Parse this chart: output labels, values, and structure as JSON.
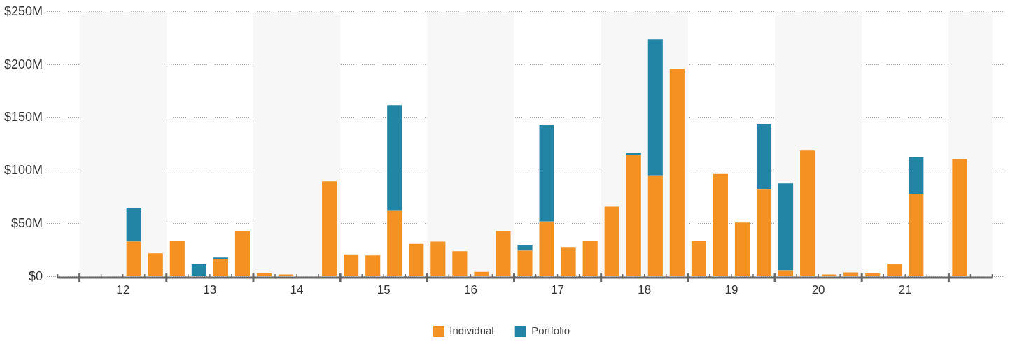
{
  "chart_data": {
    "type": "bar",
    "stacked": true,
    "x": [
      12.625,
      12.875,
      13.125,
      13.375,
      13.625,
      13.875,
      14.125,
      14.375,
      14.625,
      14.875,
      15.125,
      15.375,
      15.625,
      15.875,
      16.125,
      16.375,
      16.625,
      16.875,
      17.125,
      17.375,
      17.625,
      17.875,
      18.125,
      18.375,
      18.625,
      18.875,
      19.125,
      19.375,
      19.625,
      19.875,
      20.125,
      20.375,
      20.625,
      20.875,
      21.125,
      21.375,
      21.625,
      21.875,
      22.125
    ],
    "series": [
      {
        "name": "Individual",
        "color": "#f39122",
        "values": [
          33,
          22,
          34,
          null,
          16.5,
          43,
          3,
          2,
          null,
          90,
          21,
          20,
          62,
          31,
          33,
          24,
          4.5,
          43,
          24.5,
          52,
          28,
          34,
          66,
          115,
          95,
          196,
          33.5,
          97,
          51,
          82,
          6,
          119,
          2,
          4,
          3,
          12,
          78,
          null,
          111
        ]
      },
      {
        "name": "Portfolio",
        "color": "#2385a6",
        "values": [
          32,
          null,
          null,
          12,
          1.5,
          null,
          null,
          null,
          null,
          null,
          null,
          null,
          100,
          null,
          null,
          null,
          null,
          null,
          5.5,
          91,
          null,
          null,
          null,
          1.5,
          129,
          null,
          null,
          null,
          null,
          62,
          82,
          null,
          null,
          null,
          null,
          null,
          35,
          null,
          null
        ]
      }
    ],
    "xlim": [
      11.75,
      22.5
    ],
    "xticks": [
      {
        "value": 11.75,
        "label": null
      },
      {
        "value": 12,
        "label": null
      },
      {
        "value": 12.25,
        "label": null
      },
      {
        "value": 12.5,
        "label": "12"
      },
      {
        "value": 12.75,
        "label": null
      },
      {
        "value": 13,
        "label": null
      },
      {
        "value": 13.25,
        "label": null
      },
      {
        "value": 13.5,
        "label": "13"
      },
      {
        "value": 13.75,
        "label": null
      },
      {
        "value": 14,
        "label": null
      },
      {
        "value": 14.25,
        "label": null
      },
      {
        "value": 14.5,
        "label": "14"
      },
      {
        "value": 14.75,
        "label": null
      },
      {
        "value": 15,
        "label": null
      },
      {
        "value": 15.25,
        "label": null
      },
      {
        "value": 15.5,
        "label": "15"
      },
      {
        "value": 15.75,
        "label": null
      },
      {
        "value": 16,
        "label": null
      },
      {
        "value": 16.25,
        "label": null
      },
      {
        "value": 16.5,
        "label": "16"
      },
      {
        "value": 16.75,
        "label": null
      },
      {
        "value": 17,
        "label": null
      },
      {
        "value": 17.25,
        "label": null
      },
      {
        "value": 17.5,
        "label": "17"
      },
      {
        "value": 17.75,
        "label": null
      },
      {
        "value": 18,
        "label": null
      },
      {
        "value": 18.25,
        "label": null
      },
      {
        "value": 18.5,
        "label": "18"
      },
      {
        "value": 18.75,
        "label": null
      },
      {
        "value": 19,
        "label": null
      },
      {
        "value": 19.25,
        "label": null
      },
      {
        "value": 19.5,
        "label": "19"
      },
      {
        "value": 19.75,
        "label": null
      },
      {
        "value": 20,
        "label": null
      },
      {
        "value": 20.25,
        "label": null
      },
      {
        "value": 20.5,
        "label": "20"
      },
      {
        "value": 20.75,
        "label": null
      },
      {
        "value": 21,
        "label": null
      },
      {
        "value": 21.25,
        "label": null
      },
      {
        "value": 21.5,
        "label": "21"
      },
      {
        "value": 21.75,
        "label": null
      },
      {
        "value": 22,
        "label": null
      },
      {
        "value": 22.25,
        "label": null
      },
      {
        "value": 22.5,
        "label": null
      }
    ],
    "ylim": [
      0,
      250
    ],
    "yticks": [
      {
        "value": 0,
        "label": "$0"
      },
      {
        "value": 50,
        "label": "$50M"
      },
      {
        "value": 100,
        "label": "$100M"
      },
      {
        "value": 150,
        "label": "$150M"
      },
      {
        "value": 200,
        "label": "$200M"
      },
      {
        "value": 250,
        "label": "$250M"
      }
    ],
    "bands": [
      {
        "axis": "x",
        "from": 12,
        "to": 13,
        "color": "#f7f7f7"
      },
      {
        "axis": "x",
        "from": 14,
        "to": 15,
        "color": "#f7f7f7"
      },
      {
        "axis": "x",
        "from": 16,
        "to": 17,
        "color": "#f7f7f7"
      },
      {
        "axis": "x",
        "from": 18,
        "to": 19,
        "color": "#f7f7f7"
      },
      {
        "axis": "x",
        "from": 20,
        "to": 21,
        "color": "#f7f7f7"
      },
      {
        "axis": "x",
        "from": 22,
        "to": 22.5,
        "color": "#f7f7f7"
      }
    ],
    "grid": "y",
    "legend": "bottom"
  }
}
